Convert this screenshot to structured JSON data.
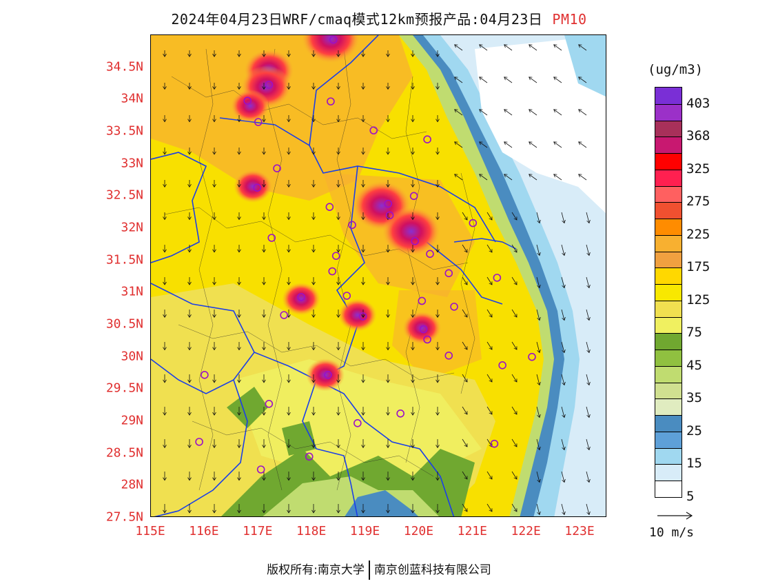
{
  "title": {
    "main": "2024年04月23日WRF/cmaq模式12km预报产品:04月23日",
    "pollutant": "PM10"
  },
  "axes": {
    "lat_labels": [
      "34.5N",
      "34N",
      "33.5N",
      "33N",
      "32.5N",
      "32N",
      "31.5N",
      "31N",
      "30.5N",
      "30N",
      "29.5N",
      "29N",
      "28.5N",
      "28N",
      "27.5N"
    ],
    "lat_values": [
      34.5,
      34,
      33.5,
      33,
      32.5,
      32,
      31.5,
      31,
      30.5,
      30,
      29.5,
      29,
      28.5,
      28,
      27.5
    ],
    "lon_labels": [
      "115E",
      "116E",
      "117E",
      "118E",
      "119E",
      "120E",
      "121E",
      "122E",
      "123E"
    ],
    "lon_values": [
      115,
      116,
      117,
      118,
      119,
      120,
      121,
      122,
      123
    ],
    "lat_range": [
      27.5,
      35.0
    ],
    "lon_range": [
      115.0,
      123.5
    ]
  },
  "legend": {
    "unit": "(ug/m3)",
    "labels": [
      "403",
      "368",
      "325",
      "275",
      "225",
      "175",
      "125",
      "75",
      "45",
      "35",
      "25",
      "15",
      "5"
    ],
    "colors_top_to_bottom": [
      "#7a2fd6",
      "#9b30c8",
      "#a8305a",
      "#c81870",
      "#ff0000",
      "#ff2050",
      "#ff6060",
      "#f05030",
      "#ff8c00",
      "#f8b030",
      "#f0a040",
      "#ffd800",
      "#f8e800",
      "#f0e050",
      "#f0f060",
      "#70a830",
      "#90c040",
      "#c0dc70",
      "#d0e090",
      "#e0ecc0",
      "#4a8cc0",
      "#5ea0d8",
      "#a0d8f0",
      "#d8ecf8",
      "#ffffff"
    ]
  },
  "wind_key": {
    "label": "10 m/s"
  },
  "copyright": {
    "left": "版权所有:南京大学",
    "right": "南京创蓝科技有限公司"
  },
  "cities": [
    {
      "lon": 118.4,
      "lat": 34.93
    },
    {
      "lon": 117.2,
      "lat": 34.23
    },
    {
      "lon": 116.8,
      "lat": 33.98
    },
    {
      "lon": 118.35,
      "lat": 33.97
    },
    {
      "lon": 117.0,
      "lat": 33.65
    },
    {
      "lon": 119.15,
      "lat": 33.52
    },
    {
      "lon": 120.15,
      "lat": 33.38
    },
    {
      "lon": 117.35,
      "lat": 32.93
    },
    {
      "lon": 116.98,
      "lat": 32.63
    },
    {
      "lon": 118.33,
      "lat": 32.33
    },
    {
      "lon": 119.42,
      "lat": 32.38
    },
    {
      "lon": 119.9,
      "lat": 32.5
    },
    {
      "lon": 121.0,
      "lat": 32.08
    },
    {
      "lon": 118.75,
      "lat": 32.05
    },
    {
      "lon": 119.45,
      "lat": 32.2
    },
    {
      "lon": 117.25,
      "lat": 31.85
    },
    {
      "lon": 119.92,
      "lat": 31.8
    },
    {
      "lon": 120.2,
      "lat": 31.6
    },
    {
      "lon": 118.38,
      "lat": 31.33
    },
    {
      "lon": 118.45,
      "lat": 31.57
    },
    {
      "lon": 120.55,
      "lat": 31.3
    },
    {
      "lon": 121.45,
      "lat": 31.23
    },
    {
      "lon": 117.8,
      "lat": 30.93
    },
    {
      "lon": 118.65,
      "lat": 30.95
    },
    {
      "lon": 120.05,
      "lat": 30.87
    },
    {
      "lon": 120.65,
      "lat": 30.78
    },
    {
      "lon": 117.48,
      "lat": 30.65
    },
    {
      "lon": 118.95,
      "lat": 30.63
    },
    {
      "lon": 120.08,
      "lat": 30.43
    },
    {
      "lon": 120.15,
      "lat": 30.27
    },
    {
      "lon": 120.55,
      "lat": 30.02
    },
    {
      "lon": 121.55,
      "lat": 29.87
    },
    {
      "lon": 122.1,
      "lat": 30.0
    },
    {
      "lon": 116.0,
      "lat": 29.72
    },
    {
      "lon": 118.3,
      "lat": 29.72
    },
    {
      "lon": 117.2,
      "lat": 29.27
    },
    {
      "lon": 119.65,
      "lat": 29.12
    },
    {
      "lon": 118.85,
      "lat": 28.97
    },
    {
      "lon": 115.9,
      "lat": 28.68
    },
    {
      "lon": 121.4,
      "lat": 28.65
    },
    {
      "lon": 117.95,
      "lat": 28.45
    },
    {
      "lon": 117.05,
      "lat": 28.25
    }
  ],
  "hotspots": [
    {
      "lon": 117.2,
      "lat": 34.45,
      "level": "368"
    },
    {
      "lon": 117.15,
      "lat": 34.2,
      "level": "368"
    },
    {
      "lon": 116.85,
      "lat": 33.9,
      "level": "325"
    },
    {
      "lon": 118.35,
      "lat": 34.95,
      "level": "403"
    },
    {
      "lon": 116.9,
      "lat": 32.65,
      "level": "325"
    },
    {
      "lon": 119.3,
      "lat": 32.35,
      "level": "403"
    },
    {
      "lon": 119.85,
      "lat": 31.95,
      "level": "403"
    },
    {
      "lon": 118.85,
      "lat": 30.65,
      "level": "325"
    },
    {
      "lon": 117.8,
      "lat": 30.9,
      "level": "325"
    },
    {
      "lon": 120.05,
      "lat": 30.45,
      "level": "275"
    },
    {
      "lon": 118.25,
      "lat": 29.72,
      "level": "275"
    }
  ]
}
